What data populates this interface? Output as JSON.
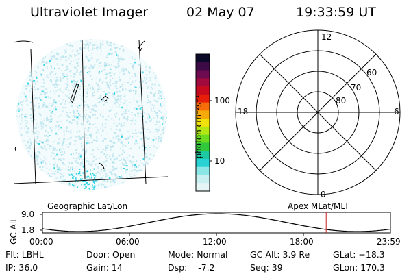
{
  "header": {
    "title": "Ultraviolet Imager",
    "date": "02 May 07",
    "time": "19:33:59 UT"
  },
  "colorbar": {
    "label": "photon cm⁻²s⁻¹",
    "ticks": [
      "100",
      "10"
    ],
    "colors": [
      "#0a0a28",
      "#3c0a46",
      "#6e0a50",
      "#a00a3c",
      "#c80a1e",
      "#e61e0a",
      "#f56e0a",
      "#f5aa0a",
      "#f0e10a",
      "#b4e614",
      "#6edc1e",
      "#32c83c",
      "#1ec8a0",
      "#28d2d2",
      "#8ce6e6",
      "#c8f0f0",
      "#e6f5f5"
    ],
    "log_scale": true
  },
  "geographic_panel": {
    "label": "Geographic Lat/Lon",
    "noise_color": "#bfe6ef",
    "accent_color": "#35d6e6"
  },
  "polar_panel": {
    "label": "Apex MLat/MLT",
    "mlt_labels": [
      "12",
      "18",
      "6",
      "0"
    ],
    "mlat_labels": [
      "60",
      "70",
      "80"
    ]
  },
  "altitude_plot": {
    "ylabel": "GC Alt",
    "yticks": [
      "9.0",
      "1.8"
    ],
    "xticks": [
      "00:00",
      "06:00",
      "12:00",
      "18:00",
      "23:59"
    ],
    "current_time_marker_hours": 19.57,
    "marker_color": "#c81e1e"
  },
  "info": {
    "flt": "Flt: LBHL",
    "ip": "IP: 36.0",
    "door": "Door: Open",
    "gain": "Gain: 14",
    "mode": "Mode: Normal",
    "dsp": "Dsp:    -7.2",
    "gcalt": "GC Alt: 3.9 Re",
    "seq": "Seq: 39",
    "glat": "GLat: −18.3",
    "glon": "GLon: 170.3"
  }
}
